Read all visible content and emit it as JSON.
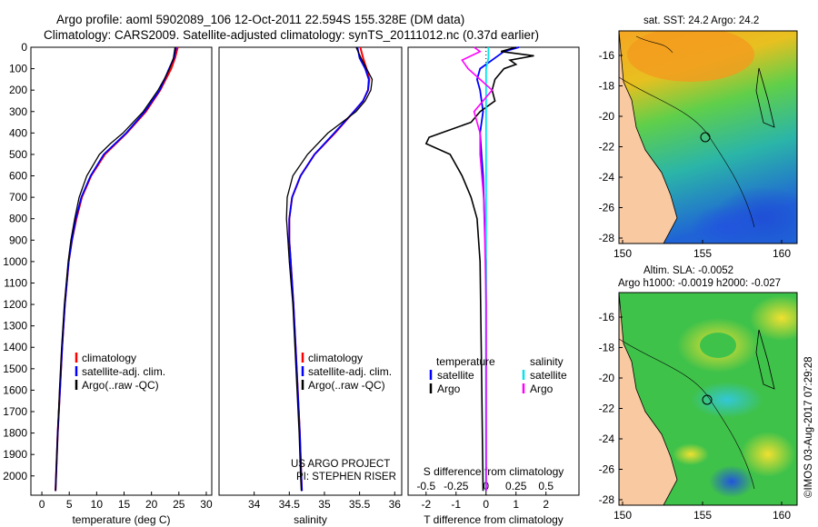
{
  "header": {
    "title_line1": "Argo profile: aoml 5902089_106 12-Oct-2011 22.594S 155.328E (DM data)",
    "title_line2": "Climatology: CARS2009. Satellite-adjusted climatology: synTS_20111012.nc (0.37d earlier)"
  },
  "side": {
    "sst_label": "sat. SST: 24.2  Argo: 24.2",
    "sla_label": "Altim. SLA: -0.0052",
    "h_label": "Argo h1000: -0.0019  h2000: -0.027",
    "credit": "©IMOS 03-Aug-2017 07:29:28"
  },
  "annotations": {
    "project": "US ARGO PROJECT",
    "pi": "PI: STEPHEN RISER"
  },
  "colors": {
    "climatology": "#ff0000",
    "satellite": "#0000ff",
    "argo": "#000000",
    "s_satellite": "#00e5ee",
    "s_argo": "#ff00ff"
  },
  "chart_data": [
    {
      "type": "line",
      "name": "temperature",
      "xlabel": "temperature (deg C)",
      "ylabel": "depth",
      "xlim": [
        -2,
        31
      ],
      "ylim": [
        2090,
        0
      ],
      "xticks": [
        0,
        5,
        10,
        15,
        20,
        25,
        30
      ],
      "yticks": [
        0,
        100,
        200,
        300,
        400,
        500,
        600,
        700,
        800,
        900,
        1000,
        1100,
        1200,
        1300,
        1400,
        1500,
        1600,
        1700,
        1800,
        1900,
        2000
      ],
      "legend": [
        "climatology",
        "satellite-adj. clim.",
        "Argo(..raw -QC)"
      ],
      "series": [
        {
          "name": "climatology",
          "depth": [
            0,
            50,
            100,
            150,
            200,
            300,
            400,
            500,
            600,
            700,
            800,
            900,
            1000,
            1200,
            1400,
            1600,
            1800,
            2000,
            2070
          ],
          "values": [
            24.8,
            24.3,
            23.6,
            22.6,
            21.6,
            19.0,
            15.5,
            11.5,
            9.0,
            7.3,
            6.3,
            5.5,
            4.9,
            4.2,
            3.7,
            3.3,
            2.9,
            2.6,
            2.5
          ]
        },
        {
          "name": "satellite-adj. clim.",
          "depth": [
            0,
            50,
            100,
            150,
            200,
            300,
            400,
            500,
            600,
            700,
            800,
            900,
            1000,
            1200,
            1400,
            1600,
            1800,
            2000,
            2070
          ],
          "values": [
            24.5,
            24.1,
            23.2,
            22.4,
            21.5,
            18.8,
            15.4,
            11.3,
            8.9,
            7.2,
            6.2,
            5.5,
            4.9,
            4.2,
            3.7,
            3.3,
            2.9,
            2.6,
            2.5
          ]
        },
        {
          "name": "Argo(..raw -QC)",
          "depth": [
            0,
            50,
            100,
            150,
            200,
            300,
            400,
            450,
            500,
            600,
            700,
            800,
            900,
            1000,
            1200,
            1400,
            1600,
            1800,
            2000,
            2070
          ],
          "values": [
            24.3,
            24.0,
            23.3,
            22.3,
            21.2,
            18.5,
            14.8,
            12.5,
            10.5,
            8.2,
            6.8,
            6.0,
            5.3,
            4.8,
            4.1,
            3.6,
            3.2,
            2.9,
            2.6,
            2.5
          ]
        }
      ]
    },
    {
      "type": "line",
      "name": "salinity",
      "xlabel": "salinity",
      "ylim": [
        2090,
        0
      ],
      "xlim": [
        33.5,
        36.1
      ],
      "xticks": [
        34,
        34.5,
        35,
        35.5,
        36
      ],
      "legend": [
        "climatology",
        "satellite-adj. clim.",
        "Argo(..raw -QC)"
      ],
      "series": [
        {
          "name": "climatology",
          "depth": [
            0,
            50,
            100,
            150,
            200,
            250,
            300,
            400,
            500,
            600,
            700,
            800,
            900,
            1000,
            1200,
            1400,
            1600,
            1800,
            2000,
            2070
          ],
          "values": [
            35.51,
            35.55,
            35.6,
            35.64,
            35.62,
            35.55,
            35.42,
            35.15,
            34.86,
            34.66,
            34.54,
            34.5,
            34.5,
            34.52,
            34.56,
            34.59,
            34.62,
            34.65,
            34.67,
            34.68
          ]
        },
        {
          "name": "satellite-adj. clim.",
          "depth": [
            0,
            50,
            100,
            150,
            200,
            250,
            300,
            400,
            500,
            600,
            700,
            800,
            900,
            1000,
            1200,
            1400,
            1600,
            1800,
            2000,
            2070
          ],
          "values": [
            35.47,
            35.5,
            35.58,
            35.63,
            35.62,
            35.55,
            35.42,
            35.14,
            34.86,
            34.66,
            34.54,
            34.5,
            34.5,
            34.52,
            34.56,
            34.59,
            34.62,
            34.65,
            34.67,
            34.68
          ]
        },
        {
          "name": "Argo(..raw -QC)",
          "depth": [
            0,
            50,
            100,
            150,
            200,
            250,
            300,
            400,
            500,
            600,
            700,
            800,
            900,
            1000,
            1200,
            1400,
            1600,
            1800,
            2000,
            2070
          ],
          "values": [
            35.45,
            35.52,
            35.6,
            35.68,
            35.66,
            35.58,
            35.45,
            35.05,
            34.76,
            34.55,
            34.47,
            34.46,
            34.48,
            34.5,
            34.55,
            34.58,
            34.61,
            34.64,
            34.66,
            34.67
          ]
        }
      ]
    },
    {
      "type": "line",
      "name": "difference from climatology",
      "xlabel": "T difference from climatology",
      "xlabel_top": "S difference from climatology",
      "ylim": [
        2090,
        0
      ],
      "xlim": [
        -2.6,
        3.1
      ],
      "xticks": [
        -2,
        -1,
        0,
        1,
        2
      ],
      "xticks_s": [
        -0.5,
        -0.25,
        0,
        0.25,
        0.5
      ],
      "legend_temperature_title": "temperature",
      "legend_salinity_title": "salinity",
      "legend_satellite": "satellite",
      "legend_argo": "Argo",
      "series": [
        {
          "name": "temperature satellite",
          "depth": [
            0,
            20,
            50,
            80,
            100,
            150,
            200,
            300,
            400,
            500,
            600,
            800,
            1000,
            1500,
            2070
          ],
          "values": [
            1.1,
            0.6,
            0.3,
            0.0,
            -0.2,
            -0.3,
            -0.2,
            -0.1,
            -0.2,
            -0.15,
            -0.1,
            -0.05,
            0,
            0,
            0
          ]
        },
        {
          "name": "temperature Argo",
          "depth": [
            0,
            20,
            40,
            60,
            80,
            100,
            150,
            200,
            250,
            300,
            350,
            400,
            420,
            450,
            500,
            600,
            700,
            800,
            1000,
            1500,
            2070
          ],
          "values": [
            1.0,
            0.5,
            1.6,
            0.8,
            1.0,
            0.6,
            0.3,
            0.2,
            0.3,
            -0.2,
            -0.5,
            -1.5,
            -1.9,
            -2.0,
            -1.2,
            -0.8,
            -0.5,
            -0.3,
            -0.2,
            -0.15,
            -0.1
          ]
        },
        {
          "name": "salinity satellite",
          "depth": [
            0,
            50,
            100,
            200,
            300,
            400,
            600,
            800,
            1000,
            1500,
            2070
          ],
          "values": [
            0.02,
            0.02,
            0.0,
            0.0,
            0.0,
            0.0,
            0.0,
            0.0,
            0.0,
            0.0,
            0.0
          ]
        },
        {
          "name": "salinity Argo",
          "depth": [
            0,
            20,
            60,
            100,
            150,
            200,
            300,
            400,
            500,
            700,
            900,
            1200,
            1400,
            2070
          ],
          "values": [
            -0.1,
            -0.05,
            -0.2,
            -0.15,
            -0.05,
            0.05,
            -0.1,
            -0.05,
            -0.05,
            -0.02,
            -0.01,
            0,
            0,
            0
          ]
        }
      ]
    }
  ],
  "maps": {
    "lat_ticks": [
      "-16",
      "-18",
      "-20",
      "-22",
      "-24",
      "-26",
      "-28"
    ],
    "lon_ticks": [
      "150",
      "155",
      "160"
    ]
  }
}
